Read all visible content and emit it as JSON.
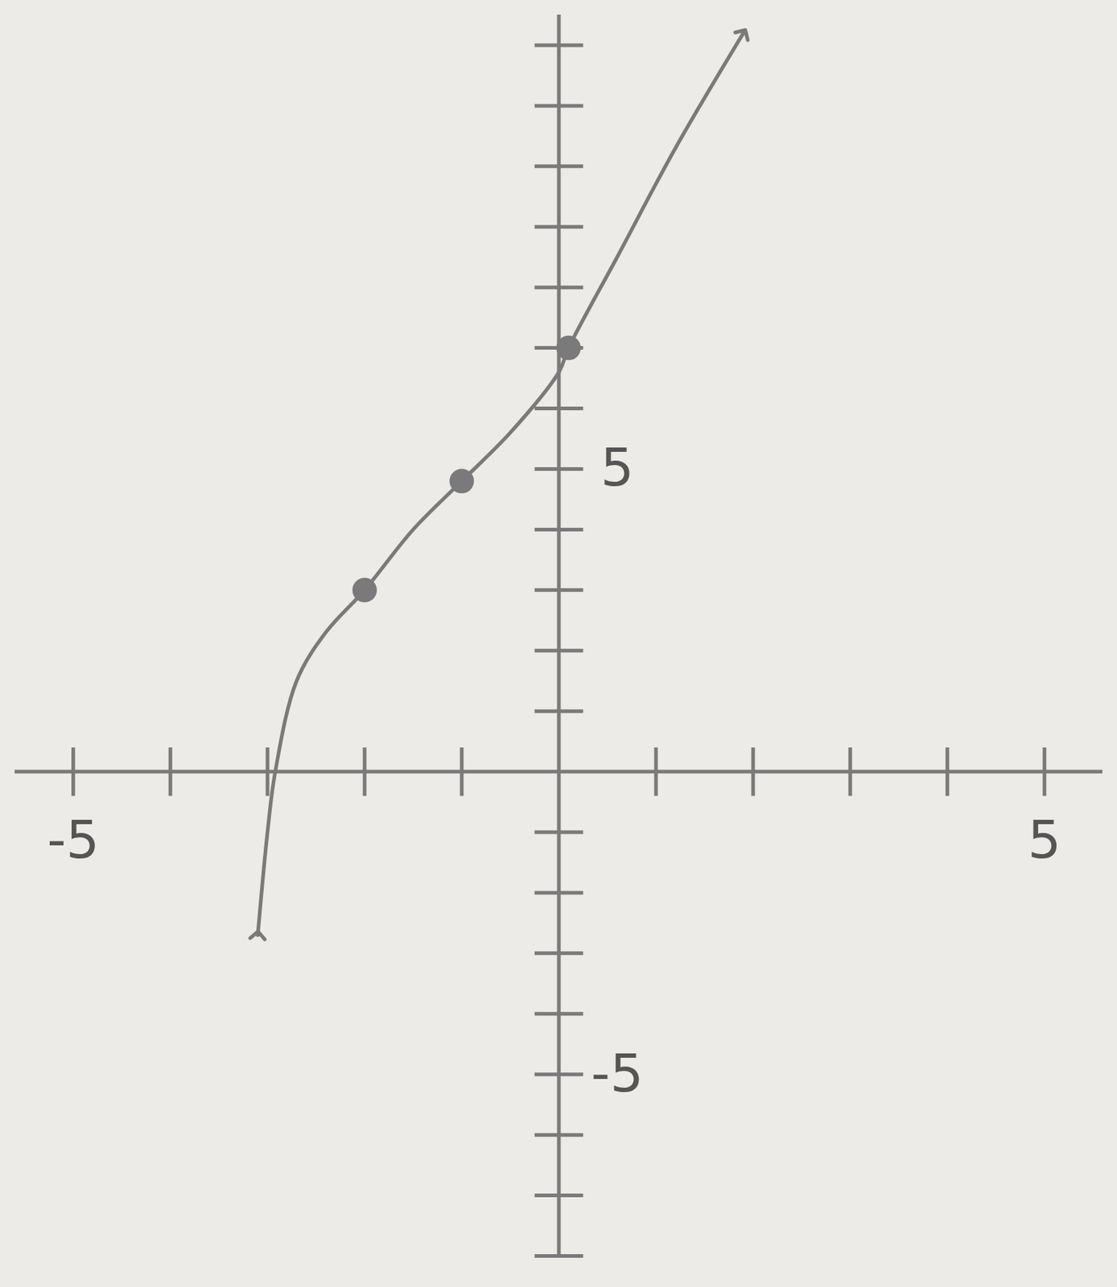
{
  "chart_data": {
    "type": "line",
    "x": [
      -3.1,
      -3.0,
      -2.92,
      -2.7,
      -2.4,
      -2.0,
      -1.5,
      -1.0,
      -0.5,
      0.0,
      0.1,
      0.6,
      1.2,
      1.9
    ],
    "values": [
      -2.7,
      -1.0,
      0.0,
      1.5,
      2.3,
      3.0,
      4.0,
      4.8,
      5.6,
      6.6,
      7.0,
      8.5,
      10.3,
      12.2
    ],
    "marked_points": {
      "x": [
        -2.0,
        -1.0,
        0.1
      ],
      "y": [
        3.0,
        4.8,
        7.0
      ]
    },
    "color": "#7a7a7a",
    "marker": "arrow",
    "xlim": [
      -5.6,
      5.6
    ],
    "ylim": [
      -8,
      12.5
    ],
    "xticks": [
      -5,
      5
    ],
    "yticks": [
      -5,
      5
    ],
    "grid": false
  }
}
